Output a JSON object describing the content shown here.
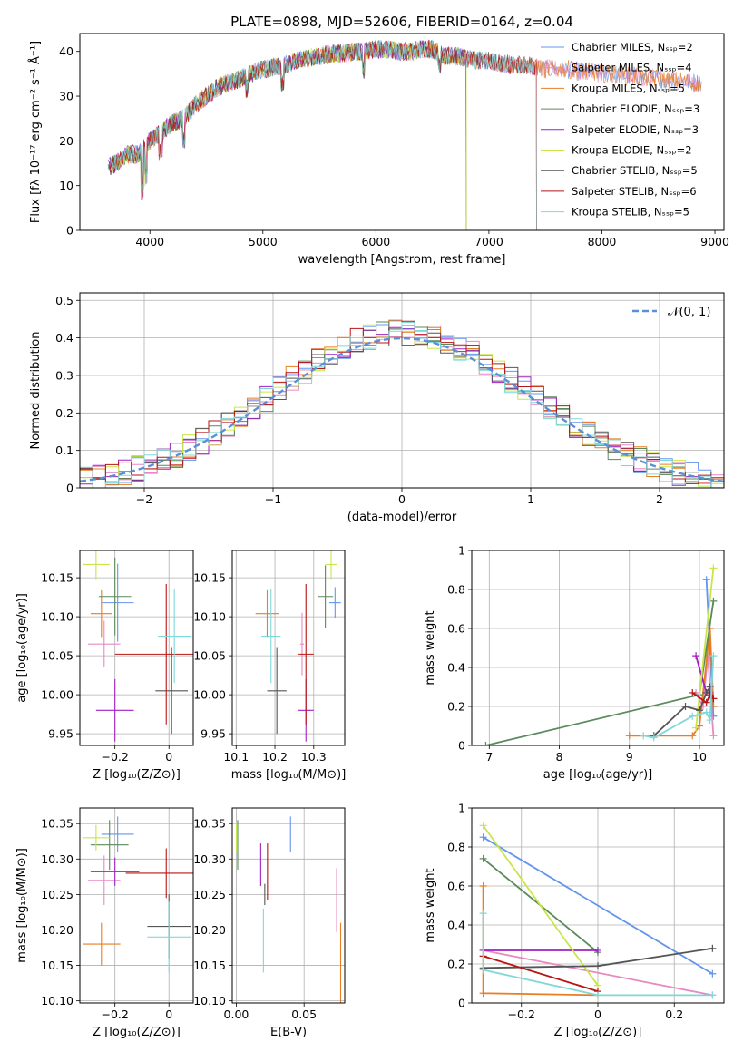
{
  "chart_data": [
    {
      "id": "spectrum",
      "type": "line",
      "title": "PLATE=0898, MJD=52606, FIBERID=0164, z=0.04",
      "xlabel": "wavelength [Angstrom, rest frame]",
      "ylabel": "Flux [fλ 10⁻¹⁷ erg cm⁻² s⁻¹ Å⁻¹]",
      "xlim": [
        3380,
        9080
      ],
      "ylim": [
        0,
        44
      ],
      "xticks": [
        4000,
        5000,
        6000,
        7000,
        8000,
        9000
      ],
      "yticks": [
        0,
        10,
        20,
        30,
        40
      ],
      "grid": false,
      "legend_position": "top-right",
      "continuum": {
        "x": [
          3620,
          3700,
          3800,
          3900,
          4000,
          4100,
          4200,
          4300,
          4400,
          4500,
          4600,
          4700,
          4800,
          4900,
          5000,
          5100,
          5200,
          5300,
          5400,
          5500,
          5600,
          5700,
          5800,
          5900,
          6000,
          6100,
          6200,
          6300,
          6400,
          6500,
          6600,
          6700,
          6800,
          6900,
          7000,
          7100,
          7200,
          7300,
          7400,
          7500,
          7600,
          7700,
          7800,
          7900,
          8000,
          8100,
          8200,
          8300,
          8400,
          8500,
          8600,
          8700,
          8800,
          8900
        ],
        "y": [
          14,
          15,
          17,
          17,
          20,
          22,
          24,
          25,
          28,
          30,
          32,
          33,
          34,
          35,
          36,
          36.5,
          37,
          38,
          38.5,
          39,
          39.5,
          39.5,
          40,
          40,
          40.5,
          40.5,
          40,
          40,
          40.5,
          40.5,
          39,
          39,
          38.5,
          38,
          38,
          37.5,
          37,
          37,
          36.5,
          36,
          36,
          36,
          35.5,
          35.5,
          35,
          35,
          34.5,
          34.5,
          34,
          34,
          33.5,
          33.5,
          33,
          33
        ]
      },
      "series": [
        {
          "name": "Chabrier MILES, Nₛₛₚ=2",
          "color": "#6495ed",
          "xmax": 8880
        },
        {
          "name": "Salpeter MILES, Nₛₛₚ=4",
          "color": "#e78ac3",
          "xmax": 8880
        },
        {
          "name": "Kroupa MILES, Nₛₛₚ=5",
          "color": "#e87d22",
          "xmax": 8880
        },
        {
          "name": "Chabrier ELODIE, Nₛₛₚ=3",
          "color": "#5a8a5a",
          "xmax": 6800
        },
        {
          "name": "Salpeter ELODIE, Nₛₛₚ=3",
          "color": "#a020c0",
          "xmax": 6800
        },
        {
          "name": "Kroupa ELODIE, Nₛₛₚ=2",
          "color": "#c8e64a",
          "xmax": 6800
        },
        {
          "name": "Chabrier STELIB, Nₛₛₚ=5",
          "color": "#555555",
          "xmax": 7420
        },
        {
          "name": "Salpeter STELIB, Nₛₛₚ=6",
          "color": "#b81414",
          "xmax": 7420
        },
        {
          "name": "Kroupa STELIB, Nₛₛₚ=5",
          "color": "#7fd8d8",
          "xmax": 7420
        }
      ]
    },
    {
      "id": "residuals",
      "type": "line",
      "xlabel": "(data-model)/error",
      "ylabel": "Normed distribution",
      "xlim": [
        -2.5,
        2.5
      ],
      "ylim": [
        0,
        0.52
      ],
      "xticks": [
        -2,
        -1,
        0,
        1,
        2
      ],
      "yticks": [
        0.0,
        0.1,
        0.2,
        0.3,
        0.4,
        0.5
      ],
      "grid": true,
      "legend_position": "top-right",
      "reference_label": "𝒩(0, 1)",
      "reference_color": "#5b8fd6",
      "bin_width": 0.1
    },
    {
      "id": "age_vs_Z",
      "type": "scatter",
      "xlabel": "Z [log₁₀(Z/Z⊙)]",
      "ylabel": "age  [log₁₀(age/yr)]",
      "xlim": [
        -0.33,
        0.09
      ],
      "ylim": [
        9.935,
        10.185
      ],
      "xticks": [
        -0.2,
        0.0
      ],
      "yticks": [
        9.95,
        10.0,
        10.05,
        10.1,
        10.15
      ],
      "ytick_labels": [
        "9.95",
        "10.00",
        "10.05",
        "10.10",
        "10.15"
      ],
      "grid": true,
      "points": [
        {
          "series": 0,
          "x": -0.19,
          "y": 10.118,
          "xerr": 0.06,
          "yerr": 0.05
        },
        {
          "series": 1,
          "x": -0.24,
          "y": 10.065,
          "xerr": 0.06,
          "yerr": 0.03
        },
        {
          "series": 2,
          "x": -0.25,
          "y": 10.104,
          "xerr": 0.04,
          "yerr": 0.03
        },
        {
          "series": 3,
          "x": -0.2,
          "y": 10.126,
          "xerr": 0.06,
          "yerr": 0.05
        },
        {
          "series": 4,
          "x": -0.2,
          "y": 9.98,
          "xerr": 0.07,
          "yerr": 0.04
        },
        {
          "series": 5,
          "x": -0.27,
          "y": 10.167,
          "xerr": 0.05,
          "yerr": 0.02
        },
        {
          "series": 6,
          "x": 0.01,
          "y": 10.005,
          "xerr": 0.06,
          "yerr": 0.055
        },
        {
          "series": 7,
          "x": -0.01,
          "y": 10.052,
          "xerr": 0.19,
          "yerr": 0.09
        },
        {
          "series": 8,
          "x": 0.02,
          "y": 10.075,
          "xerr": 0.06,
          "yerr": 0.06
        }
      ]
    },
    {
      "id": "age_vs_mass",
      "type": "scatter",
      "xlabel": "mass [log₁₀(M/M⊙)]",
      "xlim": [
        10.09,
        10.38
      ],
      "ylim": [
        9.935,
        10.185
      ],
      "xticks": [
        10.1,
        10.2,
        10.3
      ],
      "yticks": [
        9.95,
        10.0,
        10.05,
        10.1,
        10.15
      ],
      "ytick_labels": [
        "9.95",
        "10.00",
        "10.05",
        "10.10",
        "10.15"
      ],
      "grid": true,
      "points": [
        {
          "series": 0,
          "x": 10.355,
          "y": 10.118,
          "xerr": 0.015,
          "yerr": 0.02
        },
        {
          "series": 1,
          "x": 10.27,
          "y": 10.065,
          "xerr": 0.005,
          "yerr": 0.04
        },
        {
          "series": 2,
          "x": 10.18,
          "y": 10.104,
          "xerr": 0.03,
          "yerr": 0.03
        },
        {
          "series": 3,
          "x": 10.33,
          "y": 10.126,
          "xerr": 0.02,
          "yerr": 0.04
        },
        {
          "series": 4,
          "x": 10.28,
          "y": 9.98,
          "xerr": 0.02,
          "yerr": 0.04
        },
        {
          "series": 5,
          "x": 10.345,
          "y": 10.167,
          "xerr": 0.015,
          "yerr": 0.02
        },
        {
          "series": 6,
          "x": 10.205,
          "y": 10.005,
          "xerr": 0.025,
          "yerr": 0.055
        },
        {
          "series": 7,
          "x": 10.28,
          "y": 10.052,
          "xerr": 0.02,
          "yerr": 0.09
        },
        {
          "series": 8,
          "x": 10.19,
          "y": 10.075,
          "xerr": 0.025,
          "yerr": 0.06
        }
      ]
    },
    {
      "id": "weight_vs_age",
      "type": "line",
      "xlabel": "age  [log₁₀(age/yr)]",
      "ylabel": "mass weight",
      "xlim": [
        6.75,
        10.35
      ],
      "ylim": [
        0,
        1
      ],
      "xticks": [
        7,
        8,
        9,
        10
      ],
      "yticks": [
        0.0,
        0.2,
        0.4,
        0.6,
        0.8,
        1.0
      ],
      "grid": true,
      "series_points": [
        {
          "series": 0,
          "x": [
            10.1,
            10.2
          ],
          "y": [
            0.85,
            0.15
          ]
        },
        {
          "series": 1,
          "x": [
            9.95,
            10.05,
            10.12,
            10.2
          ],
          "y": [
            0.27,
            0.2,
            0.46,
            0.05
          ]
        },
        {
          "series": 2,
          "x": [
            9.0,
            9.9,
            10.0,
            10.15,
            10.2
          ],
          "y": [
            0.05,
            0.05,
            0.1,
            0.6,
            0.2
          ]
        },
        {
          "series": 3,
          "x": [
            6.95,
            10.0,
            10.2
          ],
          "y": [
            0.0,
            0.26,
            0.74
          ]
        },
        {
          "series": 4,
          "x": [
            9.95,
            10.1,
            10.15
          ],
          "y": [
            0.46,
            0.27,
            0.27
          ]
        },
        {
          "series": 5,
          "x": [
            9.95,
            10.2
          ],
          "y": [
            0.09,
            0.91
          ]
        },
        {
          "series": 6,
          "x": [
            9.35,
            9.8,
            10.0,
            10.1,
            10.15
          ],
          "y": [
            0.05,
            0.2,
            0.18,
            0.27,
            0.3
          ]
        },
        {
          "series": 7,
          "x": [
            9.9,
            10.1,
            10.15,
            10.2
          ],
          "y": [
            0.27,
            0.22,
            0.26,
            0.24
          ]
        },
        {
          "series": 8,
          "x": [
            9.2,
            9.35,
            9.9,
            10.1,
            10.15,
            10.2
          ],
          "y": [
            0.05,
            0.04,
            0.15,
            0.17,
            0.13,
            0.46
          ]
        }
      ]
    },
    {
      "id": "mass_vs_Z",
      "type": "scatter",
      "xlabel": "Z [log₁₀(Z/Z⊙)]",
      "ylabel": "mass [log₁₀(M/M⊙)]",
      "xlim": [
        -0.33,
        0.09
      ],
      "ylim": [
        10.097,
        10.372
      ],
      "xticks": [
        -0.2,
        0.0
      ],
      "yticks": [
        10.1,
        10.15,
        10.2,
        10.25,
        10.3,
        10.35
      ],
      "ytick_labels": [
        "10.10",
        "10.15",
        "10.20",
        "10.25",
        "10.30",
        "10.35"
      ],
      "grid": true,
      "points": [
        {
          "series": 0,
          "x": -0.19,
          "y": 10.335,
          "xerr": 0.06,
          "yerr": 0.025
        },
        {
          "series": 1,
          "x": -0.24,
          "y": 10.27,
          "xerr": 0.06,
          "yerr": 0.035
        },
        {
          "series": 2,
          "x": -0.25,
          "y": 10.18,
          "xerr": 0.07,
          "yerr": 0.03
        },
        {
          "series": 3,
          "x": -0.22,
          "y": 10.32,
          "xerr": 0.07,
          "yerr": 0.035
        },
        {
          "series": 4,
          "x": -0.2,
          "y": 10.282,
          "xerr": 0.09,
          "yerr": 0.02
        },
        {
          "series": 5,
          "x": -0.27,
          "y": 10.33,
          "xerr": 0.05,
          "yerr": 0.018
        },
        {
          "series": 6,
          "x": 0.0,
          "y": 10.205,
          "xerr": 0.08,
          "yerr": 0.045
        },
        {
          "series": 7,
          "x": -0.01,
          "y": 10.28,
          "xerr": 0.15,
          "yerr": 0.035
        },
        {
          "series": 8,
          "x": 0.0,
          "y": 10.19,
          "xerr": 0.08,
          "yerr": 0.05
        }
      ]
    },
    {
      "id": "mass_vs_ebv",
      "type": "scatter",
      "xlabel": "E(B-V)",
      "xlim": [
        -0.003,
        0.08
      ],
      "ylim": [
        10.097,
        10.372
      ],
      "xticks": [
        0.0,
        0.05
      ],
      "xtick_labels": [
        "0.00",
        "0.05"
      ],
      "yticks": [
        10.1,
        10.15,
        10.2,
        10.25,
        10.3,
        10.35
      ],
      "ytick_labels": [
        "10.10",
        "10.15",
        "10.20",
        "10.25",
        "10.30",
        "10.35"
      ],
      "grid": true,
      "points": [
        {
          "series": 0,
          "x": 0.04,
          "y": 10.335,
          "yerr": 0.025
        },
        {
          "series": 1,
          "x": 0.074,
          "y": 10.242,
          "yerr": 0.045
        },
        {
          "series": 2,
          "x": 0.077,
          "y": 10.14,
          "yerr": 0.07
        },
        {
          "series": 3,
          "x": 0.001,
          "y": 10.32,
          "yerr": 0.035
        },
        {
          "series": 4,
          "x": 0.018,
          "y": 10.292,
          "yerr": 0.03
        },
        {
          "series": 5,
          "x": 0.0,
          "y": 10.33,
          "yerr": 0.02
        },
        {
          "series": 6,
          "x": 0.021,
          "y": 10.25,
          "yerr": 0.015
        },
        {
          "series": 7,
          "x": 0.023,
          "y": 10.282,
          "yerr": 0.04
        },
        {
          "series": 8,
          "x": 0.02,
          "y": 10.185,
          "yerr": 0.045
        }
      ]
    },
    {
      "id": "weight_vs_Z",
      "type": "line",
      "xlabel": "Z [log₁₀(Z/Z⊙)]",
      "ylabel": "mass weight",
      "xlim": [
        -0.33,
        0.33
      ],
      "ylim": [
        0,
        1
      ],
      "xticks": [
        -0.2,
        0.0,
        0.2
      ],
      "yticks": [
        0.0,
        0.2,
        0.4,
        0.6,
        0.8,
        1.0
      ],
      "grid": true,
      "series_points": [
        {
          "series": 0,
          "x": [
            -0.3,
            0.3
          ],
          "y": [
            0.85,
            0.15
          ]
        },
        {
          "series": 1,
          "x": [
            -0.3,
            0.3
          ],
          "y": [
            0.27,
            0.04
          ]
        },
        {
          "series": 2,
          "x": [
            -0.3,
            -0.3,
            0.0
          ],
          "y": [
            0.6,
            0.05,
            0.04
          ]
        },
        {
          "series": 3,
          "x": [
            -0.3,
            0.0
          ],
          "y": [
            0.74,
            0.26
          ]
        },
        {
          "series": 4,
          "x": [
            -0.3,
            0.0
          ],
          "y": [
            0.27,
            0.27
          ]
        },
        {
          "series": 5,
          "x": [
            -0.3,
            0.0
          ],
          "y": [
            0.91,
            0.09
          ]
        },
        {
          "series": 6,
          "x": [
            -0.3,
            0.0,
            0.3
          ],
          "y": [
            0.18,
            0.19,
            0.28
          ]
        },
        {
          "series": 7,
          "x": [
            -0.3,
            0.0
          ],
          "y": [
            0.24,
            0.06
          ]
        },
        {
          "series": 8,
          "x": [
            -0.3,
            -0.3,
            0.0,
            0.3
          ],
          "y": [
            0.46,
            0.17,
            0.04,
            0.04
          ]
        }
      ]
    }
  ]
}
